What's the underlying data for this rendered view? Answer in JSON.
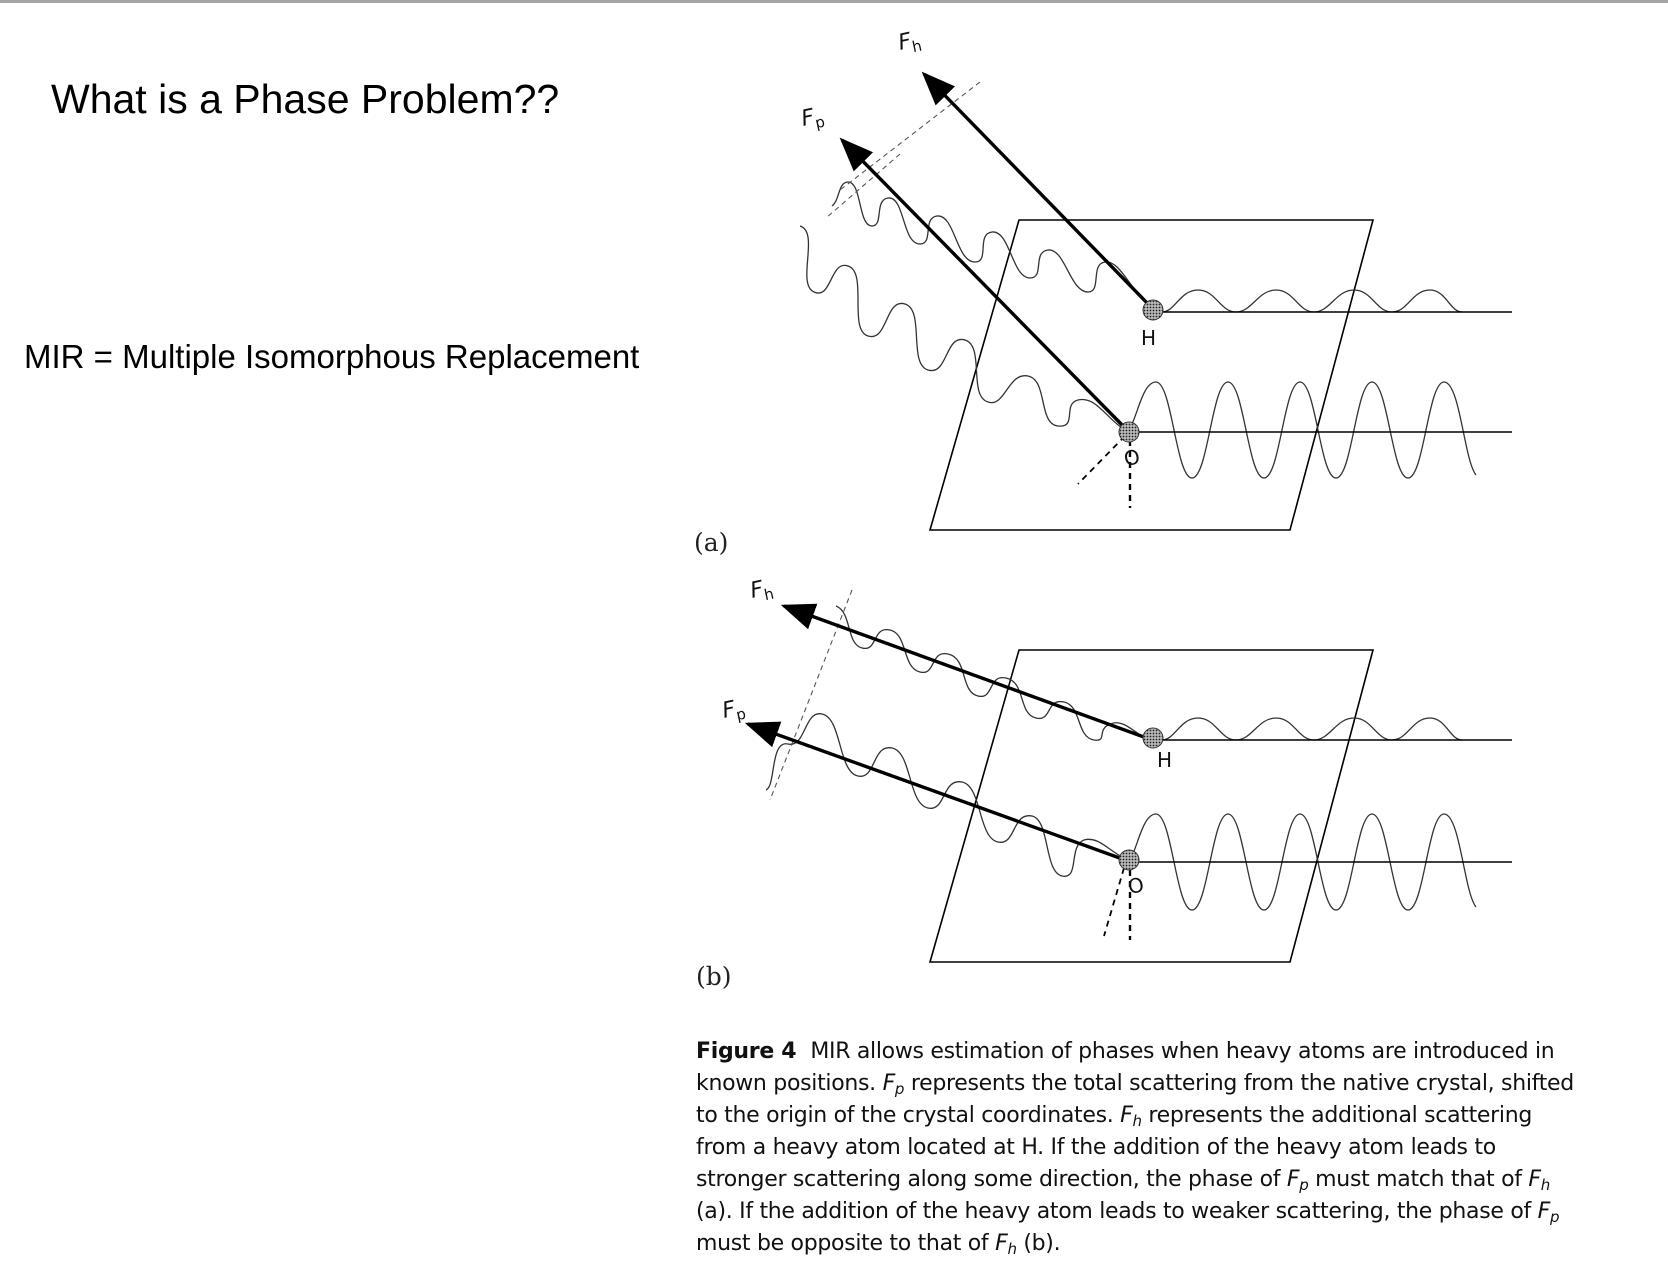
{
  "slide": {
    "title": "What is a Phase Problem??",
    "subtitle": "MIR = Multiple Isomorphous Replacement"
  },
  "figure": {
    "panel_a_label": "(a)",
    "panel_b_label": "(b)",
    "labels": {
      "fh": "F",
      "fh_sub": "h",
      "fp": "F",
      "fp_sub": "p",
      "heavy_atom": "H",
      "origin": "O"
    },
    "caption": {
      "lead": "Figure 4",
      "t1": "MIR allows estimation of phases when heavy atoms are introduced in known positions. ",
      "t2": " represents the total scattering from the native crystal, shifted to the origin of the crystal coordinates. ",
      "t3": " represents the additional scattering from a heavy atom located at H. If the addition of the heavy atom leads to stronger scattering along some direction, the phase of ",
      "t4": " must match that of ",
      "t5": " (a). If the addition of the heavy atom leads to weaker scattering, the phase of ",
      "t6": " must be opposite to that of ",
      "t7": " (b)."
    }
  }
}
